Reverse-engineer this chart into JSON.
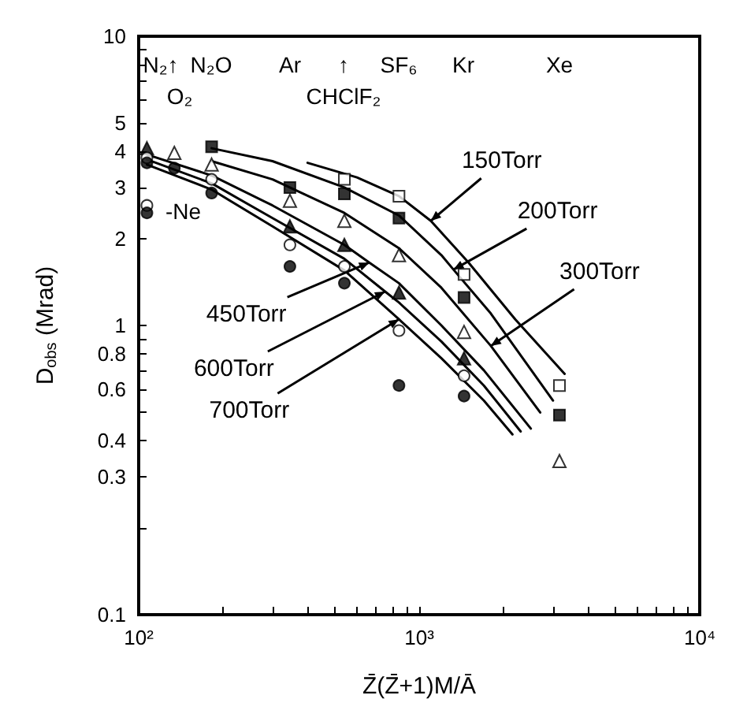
{
  "chart_data": {
    "type": "scatter",
    "xlabel": "Z̄(Z̄+1)M/Ā",
    "ylabel": "D$_{obs}$ (Mrad)",
    "log": "xy",
    "grid": false,
    "xlim": [
      100,
      10000
    ],
    "ylim": [
      0.1,
      10
    ],
    "xticks": [
      {
        "value": 100,
        "label": "10²"
      },
      {
        "value": 200,
        "label": null
      },
      {
        "value": 300,
        "label": null
      },
      {
        "value": 400,
        "label": null
      },
      {
        "value": 500,
        "label": null
      },
      {
        "value": 600,
        "label": null
      },
      {
        "value": 700,
        "label": null
      },
      {
        "value": 800,
        "label": null
      },
      {
        "value": 900,
        "label": null
      },
      {
        "value": 1000,
        "label": "10³"
      },
      {
        "value": 2000,
        "label": null
      },
      {
        "value": 3000,
        "label": null
      },
      {
        "value": 4000,
        "label": null
      },
      {
        "value": 5000,
        "label": null
      },
      {
        "value": 6000,
        "label": null
      },
      {
        "value": 7000,
        "label": null
      },
      {
        "value": 8000,
        "label": null
      },
      {
        "value": 9000,
        "label": null
      },
      {
        "value": 10000,
        "label": "10⁴"
      }
    ],
    "yticks": [
      0.1,
      {
        "value": 0.2,
        "label": null
      },
      0.3,
      0.4,
      {
        "value": 0.5,
        "label": null
      },
      0.6,
      {
        "value": 0.7,
        "label": null
      },
      0.8,
      {
        "value": 0.9,
        "label": null
      },
      1,
      2,
      3,
      4,
      5,
      {
        "value": 6,
        "label": null
      },
      {
        "value": 7,
        "label": null
      },
      {
        "value": 8,
        "label": null
      },
      {
        "value": 9,
        "label": null
      },
      10
    ],
    "series": [
      {
        "marker": "square",
        "color": "#ffffff",
        "x": [
          541,
          847,
          1445,
          3162
        ],
        "values": [
          3.2,
          2.8,
          1.5,
          0.62
        ]
      },
      {
        "marker": "square",
        "color": "#000000",
        "x": [
          182,
          346,
          541,
          847,
          1445,
          3162
        ],
        "values": [
          4.15,
          3.0,
          2.85,
          2.35,
          1.25,
          0.49
        ]
      },
      {
        "marker": "triangle",
        "color": "#ffffff",
        "x": [
          134,
          182,
          346,
          541,
          847,
          1445,
          3162
        ],
        "values": [
          3.95,
          3.6,
          2.7,
          2.3,
          1.75,
          0.95,
          0.34
        ]
      },
      {
        "marker": "triangle",
        "color": "#000000",
        "x": [
          107,
          182,
          346,
          541,
          847,
          1445
        ],
        "values": [
          4.1,
          null,
          2.2,
          1.9,
          1.3,
          0.77
        ]
      },
      {
        "marker": "circle",
        "color": "#ffffff",
        "x": [
          107,
          107,
          182,
          346,
          541,
          847,
          1445
        ],
        "values": [
          3.8,
          2.6,
          3.2,
          1.9,
          1.6,
          0.96,
          0.67
        ]
      },
      {
        "marker": "circle",
        "color": "#000000",
        "x": [
          107,
          107,
          134,
          182,
          346,
          541,
          847,
          1445
        ],
        "values": [
          3.65,
          2.45,
          3.5,
          2.87,
          1.6,
          1.4,
          0.62,
          0.57
        ]
      },
      {
        "type": "line",
        "marker": "none",
        "line_style": "solid",
        "color": "#000000",
        "x": [
          400,
          600,
          847,
          1100,
          1500,
          2200,
          3300
        ],
        "values": [
          3.65,
          3.25,
          2.8,
          2.3,
          1.65,
          1.05,
          0.68
        ]
      },
      {
        "type": "line",
        "marker": "none",
        "line_style": "solid",
        "color": "#000000",
        "x": [
          182,
          300,
          541,
          847,
          1200,
          1325,
          1800,
          3000
        ],
        "values": [
          4.1,
          3.7,
          3.0,
          2.4,
          1.75,
          1.56,
          1.1,
          0.55
        ]
      },
      {
        "type": "line",
        "marker": "none",
        "line_style": "solid",
        "color": "#000000",
        "x": [
          182,
          300,
          541,
          847,
          1200,
          1800,
          2700
        ],
        "values": [
          3.7,
          3.2,
          2.45,
          1.85,
          1.35,
          0.85,
          0.5
        ]
      },
      {
        "type": "line",
        "marker": "none",
        "line_style": "solid",
        "color": "#000000",
        "x": [
          107,
          182,
          300,
          541,
          664,
          847,
          1200,
          1700,
          2500
        ],
        "values": [
          3.9,
          3.3,
          2.6,
          1.9,
          1.65,
          1.4,
          1.0,
          0.7,
          0.44
        ]
      },
      {
        "type": "line",
        "marker": "none",
        "line_style": "solid",
        "color": "#000000",
        "x": [
          107,
          182,
          300,
          541,
          756,
          847,
          1200,
          1700,
          2300
        ],
        "values": [
          3.75,
          3.1,
          2.35,
          1.7,
          1.31,
          1.2,
          0.88,
          0.62,
          0.43
        ]
      },
      {
        "type": "line",
        "marker": "none",
        "line_style": "solid",
        "color": "#000000",
        "x": [
          107,
          182,
          300,
          541,
          847,
          1200,
          1700,
          2150
        ],
        "values": [
          3.6,
          2.95,
          2.2,
          1.55,
          1.05,
          0.77,
          0.55,
          0.42
        ]
      }
    ],
    "annotations": [
      {
        "text": "150Torr",
        "x": 1100,
        "y": 2.3
      },
      {
        "text": "200Torr",
        "x": 1325,
        "y": 1.56
      },
      {
        "text": "300Torr",
        "x": 1800,
        "y": 0.85
      },
      {
        "text": "450Torr",
        "x": 664,
        "y": 1.65
      },
      {
        "text": "600Torr",
        "x": 756,
        "y": 1.31
      },
      {
        "text": "700Torr",
        "x": 847,
        "y": 1.05
      },
      "N₂↑",
      "O₂",
      "N₂O",
      "Ar",
      "↑",
      "CHClF₂",
      "SF₆",
      "Kr",
      "Xe",
      "-Ne"
    ]
  }
}
